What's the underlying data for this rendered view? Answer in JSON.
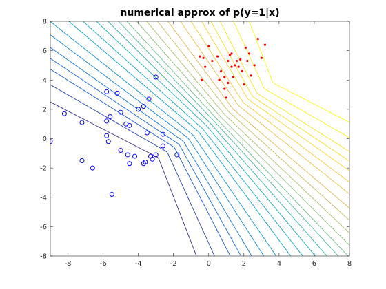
{
  "chart_data": {
    "type": "scatter",
    "title": "numerical approx of p(y=1|x)",
    "xlabel": "",
    "ylabel": "",
    "xlim": [
      -9,
      8
    ],
    "ylim": [
      -8,
      8
    ],
    "x_ticks": [
      -8,
      -6,
      -4,
      -2,
      0,
      2,
      4,
      6,
      8
    ],
    "y_ticks": [
      -8,
      -6,
      -4,
      -2,
      0,
      2,
      4,
      6,
      8
    ],
    "grid": false,
    "legend": "none",
    "contour": {
      "function": "p(y=1|x)",
      "levels": [
        0.01,
        0.02,
        0.035,
        0.05,
        0.07,
        0.1,
        0.14,
        0.2,
        0.26,
        0.33,
        0.4,
        0.47,
        0.53,
        0.6,
        0.67,
        0.74,
        0.8,
        0.86,
        0.9,
        0.93,
        0.95,
        0.965,
        0.98,
        0.99
      ],
      "colormap": "parula",
      "low_color": "#352a87",
      "high_color": "#f9fb0e"
    },
    "series": [
      {
        "marker": "circle-open",
        "color": "#0000ff",
        "points": [
          [
            -9.0,
            -0.2
          ],
          [
            -8.2,
            1.7
          ],
          [
            -7.2,
            1.1
          ],
          [
            -7.2,
            -1.5
          ],
          [
            -6.6,
            -2.0
          ],
          [
            -5.8,
            3.2
          ],
          [
            -5.2,
            3.1
          ],
          [
            -5.8,
            1.2
          ],
          [
            -5.6,
            1.5
          ],
          [
            -5.8,
            0.2
          ],
          [
            -5.7,
            -0.2
          ],
          [
            -5.0,
            1.8
          ],
          [
            -4.7,
            1.0
          ],
          [
            -4.5,
            0.9
          ],
          [
            -5.0,
            -0.8
          ],
          [
            -4.6,
            -1.1
          ],
          [
            -4.5,
            -1.7
          ],
          [
            -4.2,
            -1.2
          ],
          [
            -4.0,
            2.0
          ],
          [
            -3.7,
            2.2
          ],
          [
            -3.4,
            2.7
          ],
          [
            -3.5,
            0.4
          ],
          [
            -3.6,
            -1.6
          ],
          [
            -3.7,
            -1.7
          ],
          [
            -3.3,
            -1.2
          ],
          [
            -3.2,
            -1.4
          ],
          [
            -3.0,
            -1.1
          ],
          [
            -3.0,
            4.2
          ],
          [
            -2.6,
            0.3
          ],
          [
            -2.6,
            -0.5
          ],
          [
            -1.8,
            -1.1
          ],
          [
            -5.5,
            -3.8
          ]
        ]
      },
      {
        "marker": "dot",
        "color": "#ff0000",
        "points": [
          [
            -0.5,
            5.6
          ],
          [
            -0.3,
            5.5
          ],
          [
            0.0,
            6.3
          ],
          [
            -0.2,
            4.9
          ],
          [
            -0.4,
            4.0
          ],
          [
            0.2,
            5.3
          ],
          [
            0.5,
            5.6
          ],
          [
            0.7,
            4.6
          ],
          [
            0.6,
            4.0
          ],
          [
            0.9,
            4.2
          ],
          [
            0.9,
            3.4
          ],
          [
            1.0,
            2.8
          ],
          [
            1.1,
            3.8
          ],
          [
            1.1,
            5.3
          ],
          [
            1.2,
            5.7
          ],
          [
            1.3,
            5.8
          ],
          [
            1.3,
            4.9
          ],
          [
            1.4,
            4.2
          ],
          [
            1.5,
            5.0
          ],
          [
            1.6,
            5.3
          ],
          [
            1.7,
            4.9
          ],
          [
            1.8,
            5.4
          ],
          [
            1.9,
            4.6
          ],
          [
            2.0,
            3.7
          ],
          [
            2.1,
            6.2
          ],
          [
            2.2,
            5.3
          ],
          [
            2.3,
            5.8
          ],
          [
            2.4,
            4.3
          ],
          [
            2.6,
            5.0
          ],
          [
            2.8,
            6.8
          ],
          [
            3.2,
            6.4
          ],
          [
            3.0,
            5.5
          ]
        ]
      }
    ]
  }
}
